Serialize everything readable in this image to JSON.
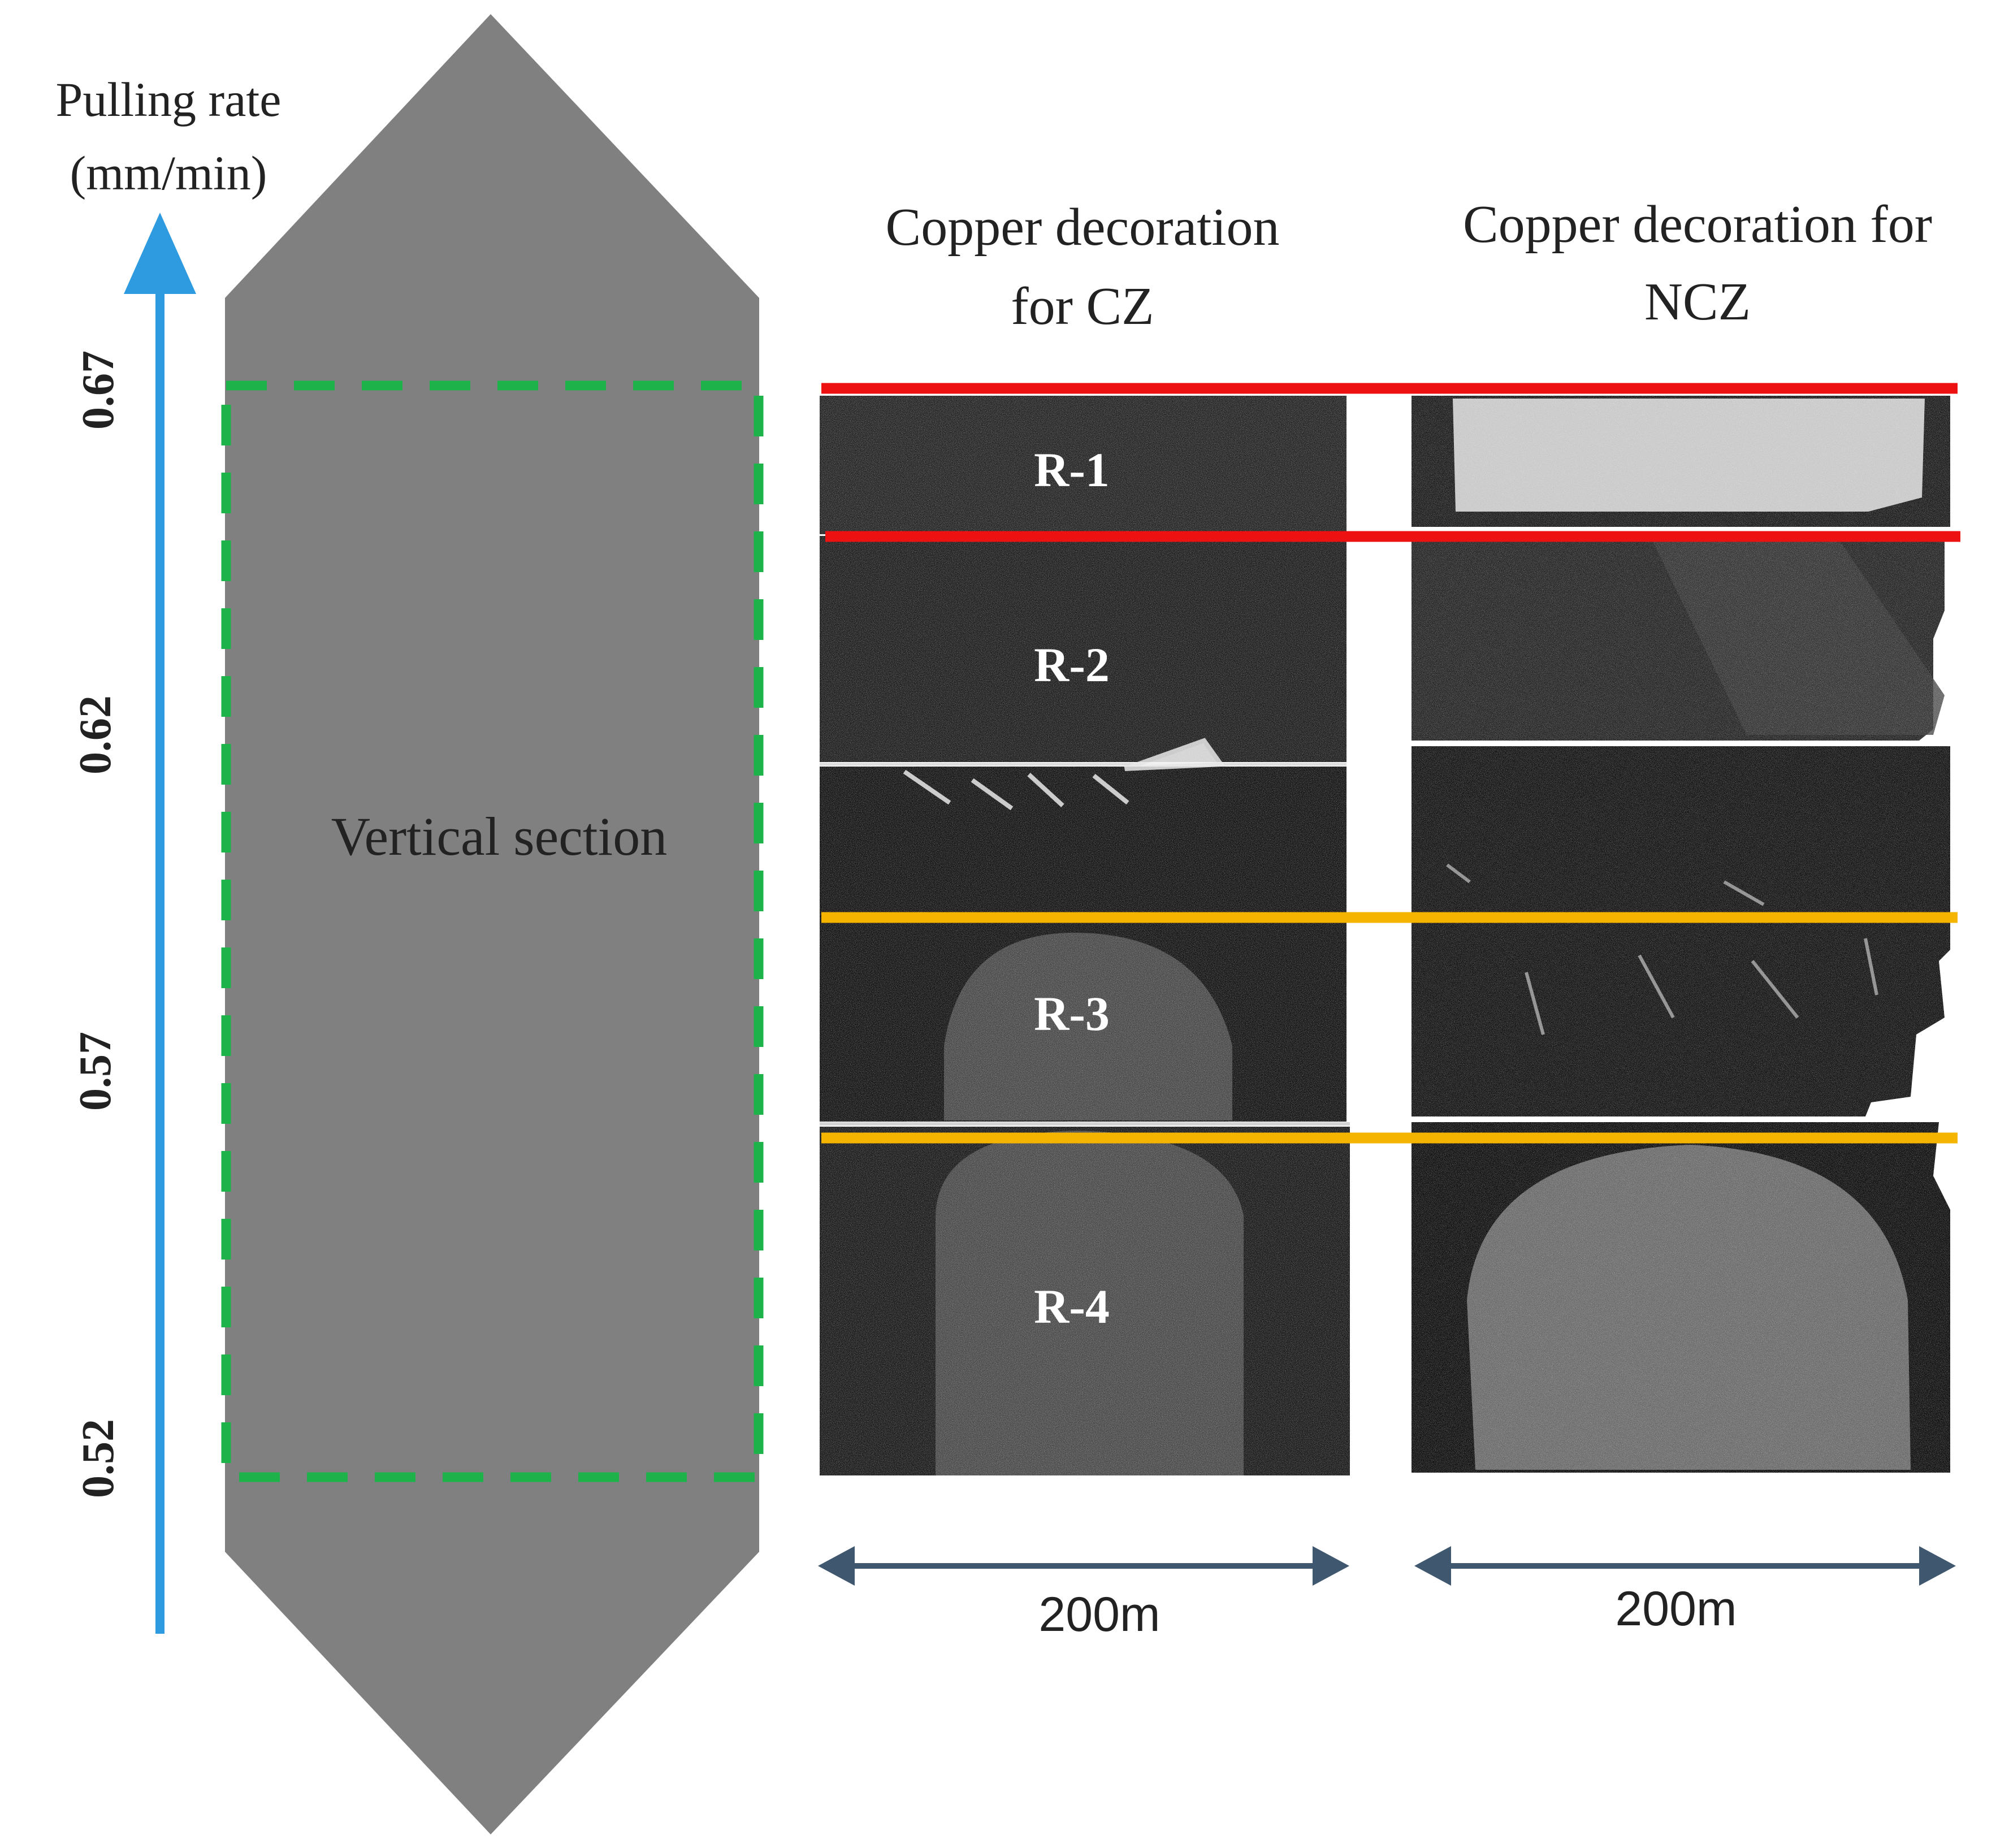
{
  "rate_axis": {
    "title_line1": "Pulling rate",
    "title_line2": "(mm/min)",
    "ticks": [
      "0.67",
      "0.62",
      "0.57",
      "0.52"
    ],
    "arrow_color": "#2e9be0"
  },
  "ingot": {
    "section_label": "Vertical section",
    "fill_color": "#808080",
    "box_color": "#1db34a"
  },
  "panels": [
    {
      "heading_line1": "Copper decoration",
      "heading_line2": "for CZ",
      "scale_label": "200m",
      "regions": [
        "R-1",
        "R-2",
        "R-3",
        "R-4"
      ]
    },
    {
      "heading_line1": "Copper decoration for",
      "heading_line2": "NCZ",
      "scale_label": "200m"
    }
  ],
  "boundaries": {
    "upper_color": "#ee1111",
    "lower_color": "#f5b400"
  },
  "scale_arrow_color": "#3f5870"
}
